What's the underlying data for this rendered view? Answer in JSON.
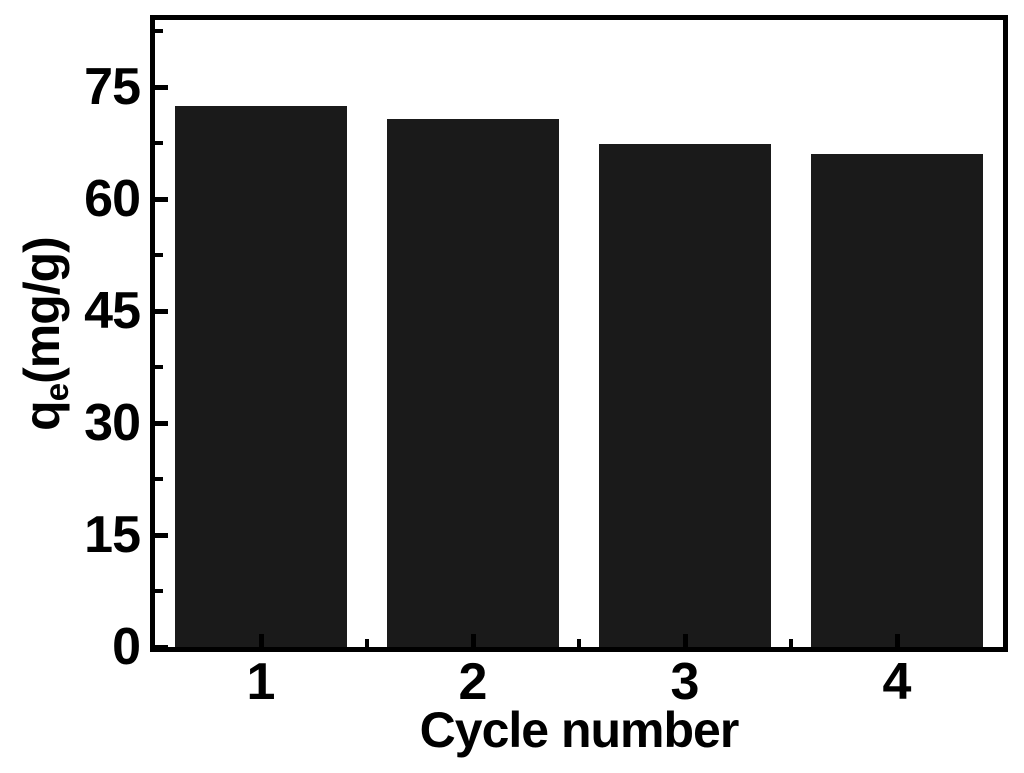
{
  "chart_data": {
    "type": "bar",
    "title": "",
    "categories": [
      "1",
      "2",
      "3",
      "4"
    ],
    "values": [
      72.5,
      70.7,
      67.4,
      66.1
    ],
    "xlabel": "Cycle number",
    "ylabel": {
      "base": "q",
      "subscript": "e",
      "rest": "(mg/g)"
    },
    "ylabel_plain": "qe(mg/g)",
    "ylim": [
      0,
      84
    ],
    "y_major_ticks": [
      0,
      15,
      30,
      45,
      60,
      75
    ],
    "y_minor_ticks": [
      7.5,
      22.5,
      37.5,
      52.5,
      67.5,
      82.5
    ],
    "x_minor_tick_positions": [
      1,
      2,
      3
    ],
    "bar_width_fraction": 0.81,
    "grid": false,
    "legend_position": "none",
    "colors": {
      "bar": "#1a1a1a",
      "axis": "#000000",
      "text": "#000000",
      "background": "#ffffff"
    }
  }
}
